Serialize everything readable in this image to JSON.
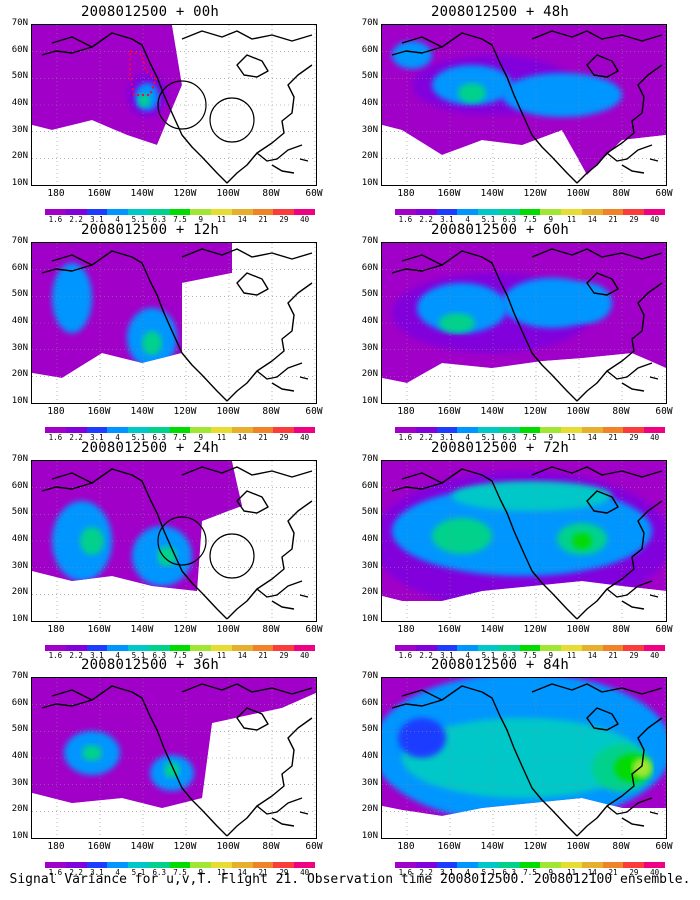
{
  "panels": [
    {
      "title": "2008012500 + 00h"
    },
    {
      "title": "2008012500 + 48h"
    },
    {
      "title": "2008012500 + 12h"
    },
    {
      "title": "2008012500 + 60h"
    },
    {
      "title": "2008012500 + 24h"
    },
    {
      "title": "2008012500 + 72h"
    },
    {
      "title": "2008012500 + 36h"
    },
    {
      "title": "2008012500 + 84h"
    }
  ],
  "lat_labels": [
    "70N",
    "60N",
    "50N",
    "40N",
    "30N",
    "20N",
    "10N"
  ],
  "lon_labels": [
    "180",
    "160W",
    "140W",
    "120W",
    "100W",
    "80W",
    "60W"
  ],
  "colorbar": {
    "labels": [
      "1.6",
      "2.2",
      "3.1",
      "4",
      "5.1",
      "6.3",
      "7.5",
      "9",
      "11",
      "14",
      "21",
      "29",
      "40"
    ],
    "colors": [
      "#a000c8",
      "#8200dc",
      "#1e3cff",
      "#0096ff",
      "#00c8c8",
      "#00d28c",
      "#00dc00",
      "#a0e632",
      "#e6dc32",
      "#e6af2d",
      "#f08228",
      "#fa3c3c",
      "#f00082"
    ]
  },
  "caption": "Signal Variance for u,v,T. Flight 21. Observation time 2008012500. 2008012100 ensemble."
}
